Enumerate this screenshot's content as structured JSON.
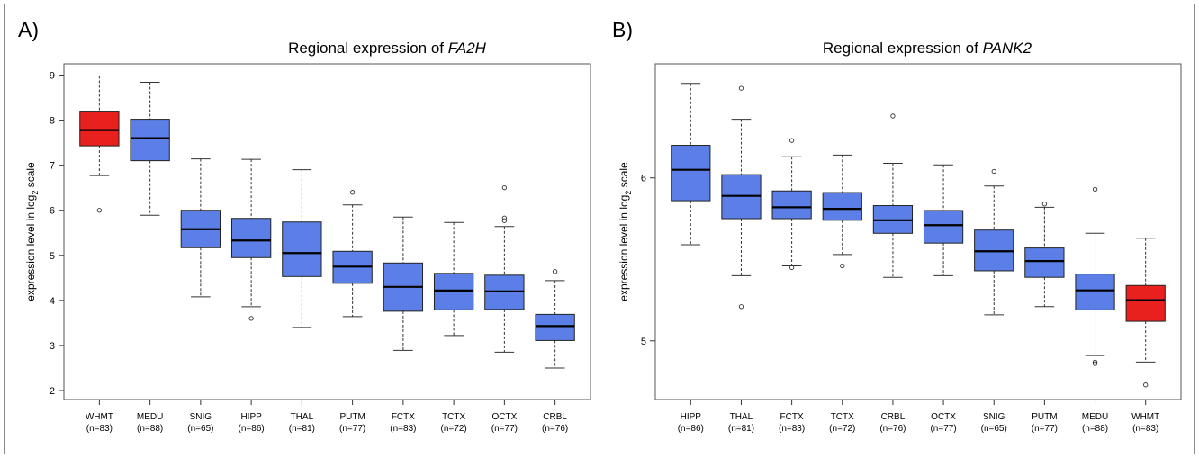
{
  "chart_data": [
    {
      "type": "box",
      "panel_label": "A)",
      "title_prefix": "Regional expression of ",
      "title_gene": "FA2H",
      "ylabel": "expression level in log2 scale",
      "ylabel_main": "expression level in log",
      "ylabel_sub": "2",
      "ylabel_tail": " scale",
      "ylim": [
        1.8,
        9.25
      ],
      "yticks": [
        2,
        3,
        4,
        5,
        6,
        7,
        8,
        9
      ],
      "colors": {
        "highlight": "#e8211f",
        "default": "#5b7fe6"
      },
      "boxes": [
        {
          "label": "WHMT",
          "n": "(n=83)",
          "min": 6.77,
          "q1": 7.43,
          "median": 7.78,
          "q3": 8.2,
          "max": 8.98,
          "outliers": [
            6.0
          ],
          "highlight": true
        },
        {
          "label": "MEDU",
          "n": "(n=88)",
          "min": 5.89,
          "q1": 7.1,
          "median": 7.6,
          "q3": 8.02,
          "max": 8.84,
          "outliers": [],
          "highlight": false
        },
        {
          "label": "SNIG",
          "n": "(n=65)",
          "min": 4.08,
          "q1": 5.17,
          "median": 5.58,
          "q3": 6.0,
          "max": 7.14,
          "outliers": [],
          "highlight": false
        },
        {
          "label": "HIPP",
          "n": "(n=86)",
          "min": 3.86,
          "q1": 4.95,
          "median": 5.33,
          "q3": 5.82,
          "max": 7.13,
          "outliers": [
            3.6
          ],
          "highlight": false
        },
        {
          "label": "THAL",
          "n": "(n=81)",
          "min": 3.4,
          "q1": 4.53,
          "median": 5.05,
          "q3": 5.74,
          "max": 6.9,
          "outliers": [],
          "highlight": false
        },
        {
          "label": "PUTM",
          "n": "(n=77)",
          "min": 3.64,
          "q1": 4.38,
          "median": 4.75,
          "q3": 5.09,
          "max": 6.12,
          "outliers": [
            6.4
          ],
          "highlight": false
        },
        {
          "label": "FCTX",
          "n": "(n=83)",
          "min": 2.89,
          "q1": 3.76,
          "median": 4.3,
          "q3": 4.83,
          "max": 5.85,
          "outliers": [],
          "highlight": false
        },
        {
          "label": "TCTX",
          "n": "(n=72)",
          "min": 3.22,
          "q1": 3.79,
          "median": 4.22,
          "q3": 4.6,
          "max": 5.73,
          "outliers": [],
          "highlight": false
        },
        {
          "label": "OCTX",
          "n": "(n=77)",
          "min": 2.85,
          "q1": 3.8,
          "median": 4.2,
          "q3": 4.56,
          "max": 5.64,
          "outliers": [
            5.77,
            5.83,
            6.5
          ],
          "highlight": false
        },
        {
          "label": "CRBL",
          "n": "(n=76)",
          "min": 2.5,
          "q1": 3.11,
          "median": 3.43,
          "q3": 3.69,
          "max": 4.44,
          "outliers": [
            4.64
          ],
          "highlight": false
        }
      ]
    },
    {
      "type": "box",
      "panel_label": "B)",
      "title_prefix": "Regional expression of ",
      "title_gene": "PANK2",
      "ylabel": "expression level in log2 scale",
      "ylabel_main": "expression level in log",
      "ylabel_sub": "2",
      "ylabel_tail": " scale",
      "ylim": [
        4.64,
        6.7
      ],
      "yticks": [
        5,
        6
      ],
      "colors": {
        "highlight": "#e8211f",
        "default": "#5b7fe6"
      },
      "boxes": [
        {
          "label": "HIPP",
          "n": "(n=86)",
          "min": 5.59,
          "q1": 5.86,
          "median": 6.05,
          "q3": 6.2,
          "max": 6.58,
          "outliers": [],
          "highlight": false
        },
        {
          "label": "THAL",
          "n": "(n=81)",
          "min": 5.4,
          "q1": 5.75,
          "median": 5.89,
          "q3": 6.02,
          "max": 6.36,
          "outliers": [
            5.21,
            6.55
          ],
          "highlight": false
        },
        {
          "label": "FCTX",
          "n": "(n=83)",
          "min": 5.46,
          "q1": 5.75,
          "median": 5.82,
          "q3": 5.92,
          "max": 6.13,
          "outliers": [
            5.45,
            6.23
          ],
          "highlight": false
        },
        {
          "label": "TCTX",
          "n": "(n=72)",
          "min": 5.53,
          "q1": 5.74,
          "median": 5.81,
          "q3": 5.91,
          "max": 6.14,
          "outliers": [
            5.46
          ],
          "highlight": false
        },
        {
          "label": "CRBL",
          "n": "(n=76)",
          "min": 5.39,
          "q1": 5.66,
          "median": 5.74,
          "q3": 5.83,
          "max": 6.09,
          "outliers": [
            6.38
          ],
          "highlight": false
        },
        {
          "label": "OCTX",
          "n": "(n=77)",
          "min": 5.4,
          "q1": 5.6,
          "median": 5.71,
          "q3": 5.8,
          "max": 6.08,
          "outliers": [],
          "highlight": false
        },
        {
          "label": "SNIG",
          "n": "(n=65)",
          "min": 5.16,
          "q1": 5.43,
          "median": 5.55,
          "q3": 5.68,
          "max": 5.95,
          "outliers": [
            6.04
          ],
          "highlight": false
        },
        {
          "label": "PUTM",
          "n": "(n=77)",
          "min": 5.21,
          "q1": 5.39,
          "median": 5.49,
          "q3": 5.57,
          "max": 5.82,
          "outliers": [
            5.84
          ],
          "highlight": false
        },
        {
          "label": "MEDU",
          "n": "(n=88)",
          "min": 4.91,
          "q1": 5.19,
          "median": 5.31,
          "q3": 5.41,
          "max": 5.66,
          "outliers": [
            4.86,
            4.87,
            5.93
          ],
          "highlight": false
        },
        {
          "label": "WHMT",
          "n": "(n=83)",
          "min": 4.87,
          "q1": 5.12,
          "median": 5.25,
          "q3": 5.34,
          "max": 5.63,
          "outliers": [
            4.73
          ],
          "highlight": true
        }
      ]
    }
  ]
}
